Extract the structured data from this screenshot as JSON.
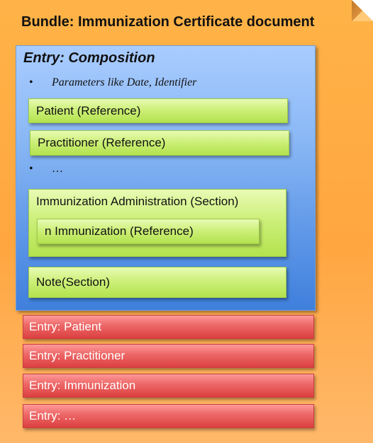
{
  "bundle": {
    "title": "Bundle: Immunization Certificate document"
  },
  "composition": {
    "title": "Entry: Composition",
    "bullets": [
      "Parameters like Date, Identifier",
      "…"
    ],
    "patient": "Patient (Reference)",
    "practitioner": "Practitioner (Reference)",
    "immunization_section": {
      "label": "Immunization Administration (Section)",
      "inner": "n Immunization (Reference)"
    },
    "note": "Note(Section)"
  },
  "entries": [
    "Entry: Patient",
    "Entry: Practitioner",
    "Entry: Immunization",
    "Entry: …"
  ],
  "colors": {
    "bundle": "#ffa640",
    "composition": "#5a94e6",
    "reference_box": "#c4ec6a",
    "entry_box": "#e05050"
  }
}
